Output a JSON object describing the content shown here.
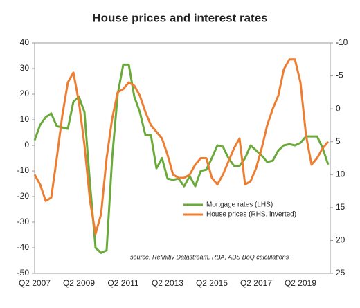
{
  "chart_data": {
    "type": "line",
    "title": "House prices and interest rates",
    "note": "source:  Refinitiv Datastream, RBA, ABS BoQ calculations",
    "categories": [
      "Q2 2007",
      null,
      null,
      null,
      null,
      null,
      null,
      null,
      "Q2 2009",
      null,
      null,
      null,
      null,
      null,
      null,
      null,
      "Q2 2011",
      null,
      null,
      null,
      null,
      null,
      null,
      null,
      "Q2 2013",
      null,
      null,
      null,
      null,
      null,
      null,
      null,
      "Q2 2015",
      null,
      null,
      null,
      null,
      null,
      null,
      null,
      "Q2 2017",
      null,
      null,
      null,
      null,
      null,
      null,
      null,
      "Q2 2019",
      null,
      null,
      null,
      null,
      null
    ],
    "series": [
      {
        "name": "Mortgage rates (LHS)",
        "color": "#6aaa3a",
        "values": [
          2,
          8,
          11,
          12.5,
          7.5,
          7,
          6.5,
          17,
          19,
          13,
          -15,
          -40,
          -42,
          -41,
          -5,
          20,
          31.5,
          31.5,
          19,
          13,
          4,
          4,
          -9,
          -5,
          -13,
          -13.5,
          -13,
          -16,
          -12,
          -16,
          -10,
          -9.5,
          -5,
          0,
          -0.5,
          -5,
          -8,
          -8,
          -5,
          0,
          -2,
          -4,
          -6.5,
          -6,
          -2,
          0,
          0.5,
          0,
          1,
          3.5,
          3.5,
          3.5,
          -1,
          -7.5
        ]
      },
      {
        "name": "House prices (RHS, inverted)",
        "color": "#ed7d31",
        "axis": "y2",
        "values": [
          10,
          11.5,
          14,
          13.5,
          7.5,
          1,
          -4,
          -5.5,
          -1,
          5.5,
          14,
          19,
          16,
          7.5,
          1.5,
          -2.5,
          -3,
          -4,
          -3.5,
          -2,
          0.5,
          2.5,
          3.5,
          4.5,
          7,
          10,
          10.5,
          10.5,
          10,
          8.5,
          7.5,
          7.5,
          10.5,
          11.5,
          10,
          8,
          6,
          4.5,
          11.5,
          11,
          9,
          6,
          2.5,
          0,
          -2,
          -6,
          -7.5,
          -7.5,
          -4,
          4,
          8.5,
          7.5,
          6,
          5
        ]
      }
    ],
    "ylim": [
      -50,
      40
    ],
    "yticks": [
      -50,
      -40,
      -30,
      -20,
      -10,
      0,
      10,
      20,
      30,
      40
    ],
    "y2lim": [
      -10,
      25
    ],
    "y2ticks": [
      -10,
      -5,
      0,
      5,
      10,
      15,
      20,
      25
    ],
    "y2_inverted": true,
    "legend": "lower right",
    "grid": false
  }
}
